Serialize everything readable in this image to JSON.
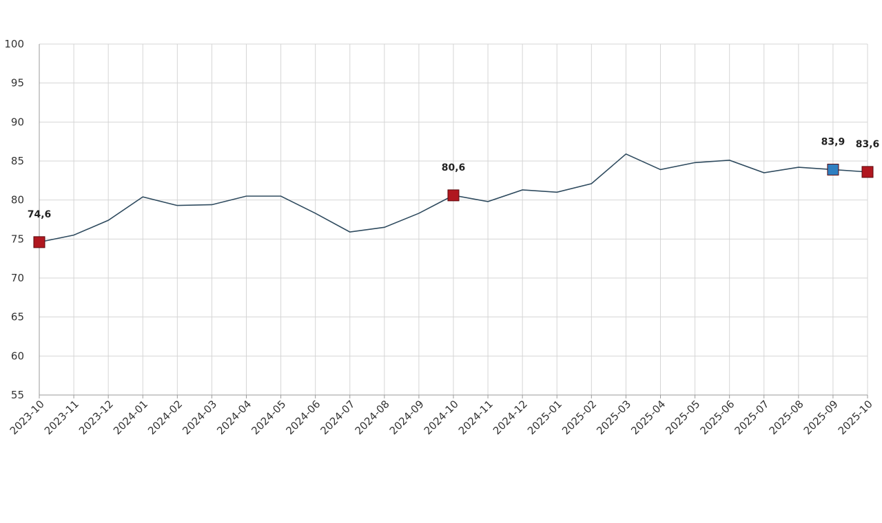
{
  "chart_data": {
    "type": "line",
    "title": "",
    "xlabel": "",
    "ylabel": "",
    "ylim": [
      55,
      100
    ],
    "yticks": [
      55,
      60,
      65,
      70,
      75,
      80,
      85,
      90,
      95,
      100
    ],
    "grid": true,
    "categories": [
      "2023-10",
      "2023-11",
      "2023-12",
      "2024-01",
      "2024-02",
      "2024-03",
      "2024-04",
      "2024-05",
      "2024-06",
      "2024-07",
      "2024-08",
      "2024-09",
      "2024-10",
      "2024-11",
      "2024-12",
      "2025-01",
      "2025-02",
      "2025-03",
      "2025-04",
      "2025-05",
      "2025-06",
      "2025-07",
      "2025-08",
      "2025-09",
      "2025-10"
    ],
    "series": [
      {
        "values": [
          74.6,
          75.5,
          77.4,
          80.4,
          79.3,
          79.4,
          80.5,
          80.5,
          78.3,
          75.9,
          76.5,
          78.3,
          80.6,
          79.8,
          81.3,
          81.0,
          82.1,
          85.9,
          83.9,
          84.8,
          85.1,
          83.5,
          84.2,
          83.9,
          83.6
        ],
        "color": "#2e4a5e"
      }
    ],
    "highlights": [
      {
        "index": 0,
        "label": "74,6",
        "color": "#b0171f"
      },
      {
        "index": 12,
        "label": "80,6",
        "color": "#b0171f"
      },
      {
        "index": 23,
        "label": "83,9",
        "color": "#2f7fc1"
      },
      {
        "index": 24,
        "label": "83,6",
        "color": "#b0171f"
      }
    ]
  }
}
